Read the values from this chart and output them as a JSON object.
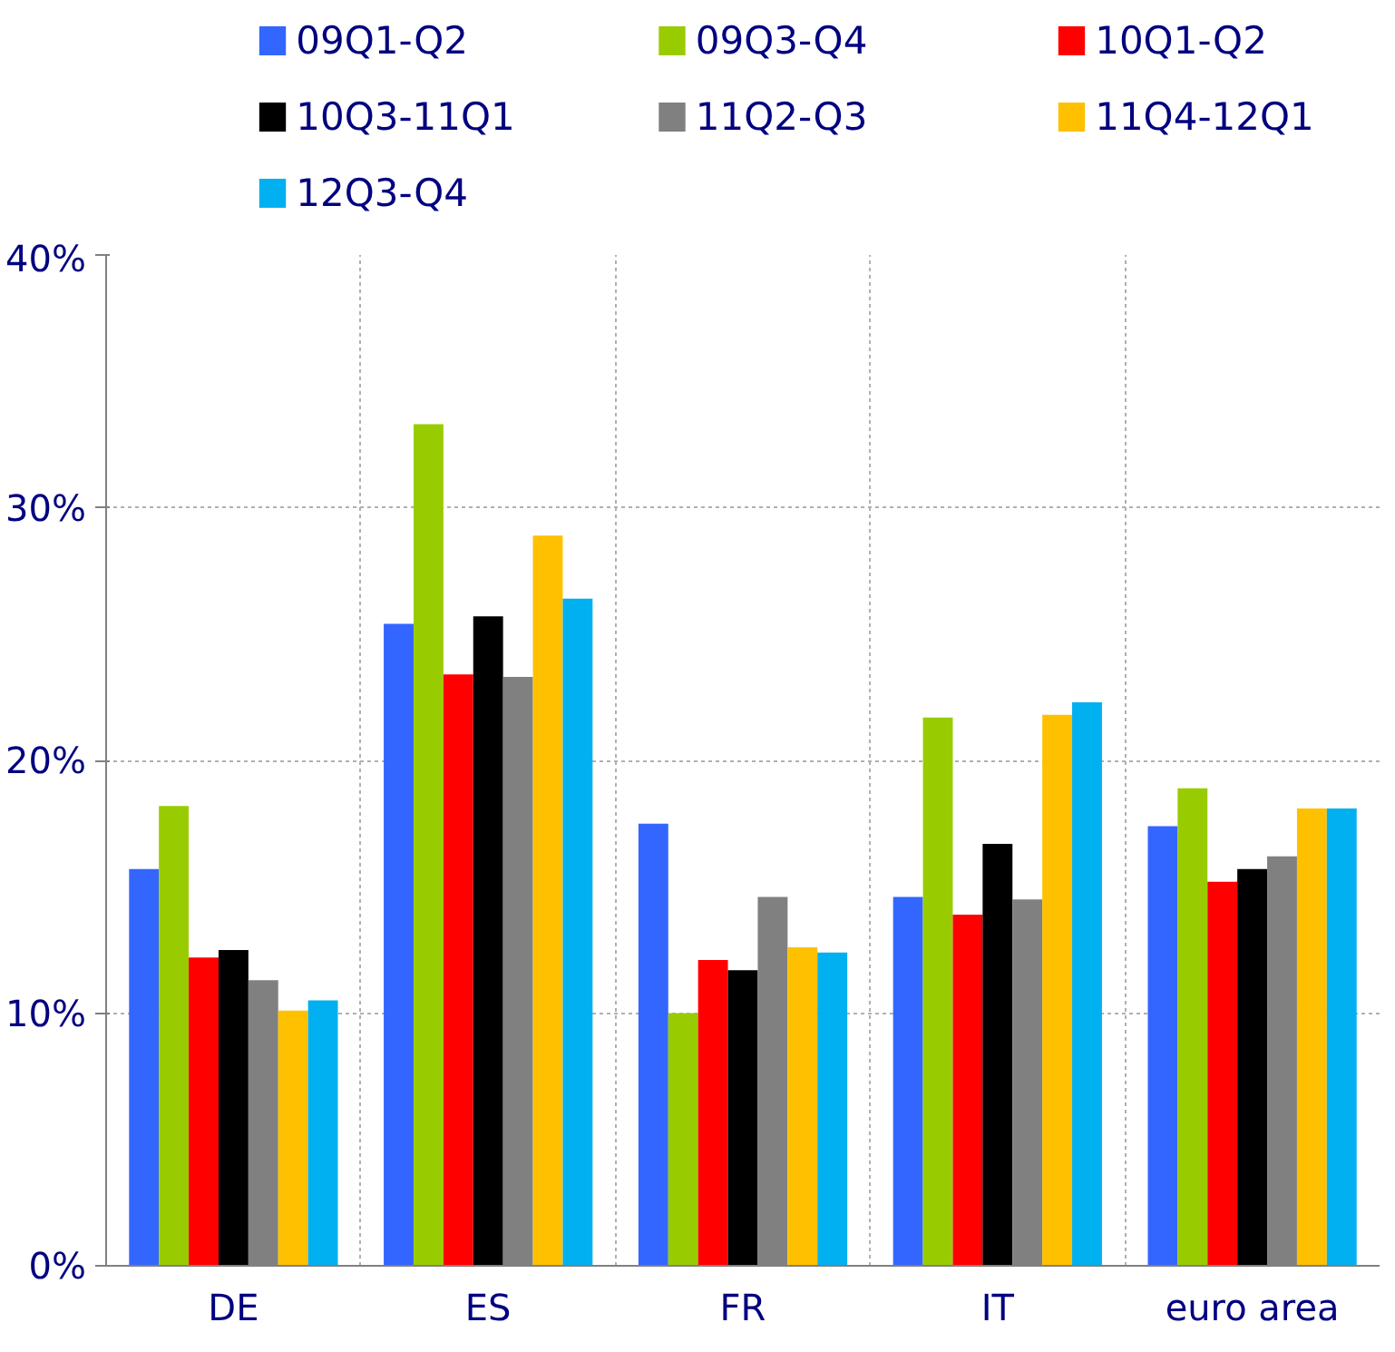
{
  "chart_data": {
    "type": "bar",
    "categories": [
      "DE",
      "ES",
      "FR",
      "IT",
      "euro area"
    ],
    "series": [
      {
        "name": "09Q1-Q2",
        "color": "#3366ff",
        "values": [
          15.7,
          25.4,
          17.5,
          14.6,
          17.4
        ]
      },
      {
        "name": "09Q3-Q4",
        "color": "#99cc00",
        "values": [
          18.2,
          33.3,
          10.0,
          21.7,
          18.9
        ]
      },
      {
        "name": "10Q1-Q2",
        "color": "#ff0000",
        "values": [
          12.2,
          23.4,
          12.1,
          13.9,
          15.2
        ]
      },
      {
        "name": "10Q3-11Q1",
        "color": "#000000",
        "values": [
          12.5,
          25.7,
          11.7,
          16.7,
          15.7
        ]
      },
      {
        "name": "11Q2-Q3",
        "color": "#808080",
        "values": [
          11.3,
          23.3,
          14.6,
          14.5,
          16.2
        ]
      },
      {
        "name": "11Q4-12Q1",
        "color": "#ffc000",
        "values": [
          10.1,
          28.9,
          12.6,
          21.8,
          18.1
        ]
      },
      {
        "name": "12Q3-Q4",
        "color": "#00b0f0",
        "values": [
          10.5,
          26.4,
          12.4,
          22.3,
          18.1
        ]
      }
    ],
    "ylim": [
      0,
      40
    ],
    "yticks": [
      {
        "value": 0,
        "label": "0%"
      },
      {
        "value": 10,
        "label": "10%"
      },
      {
        "value": 20,
        "label": "20%"
      },
      {
        "value": 30,
        "label": "30%"
      },
      {
        "value": 40,
        "label": "40%"
      }
    ],
    "grid": true,
    "legend": "top"
  }
}
